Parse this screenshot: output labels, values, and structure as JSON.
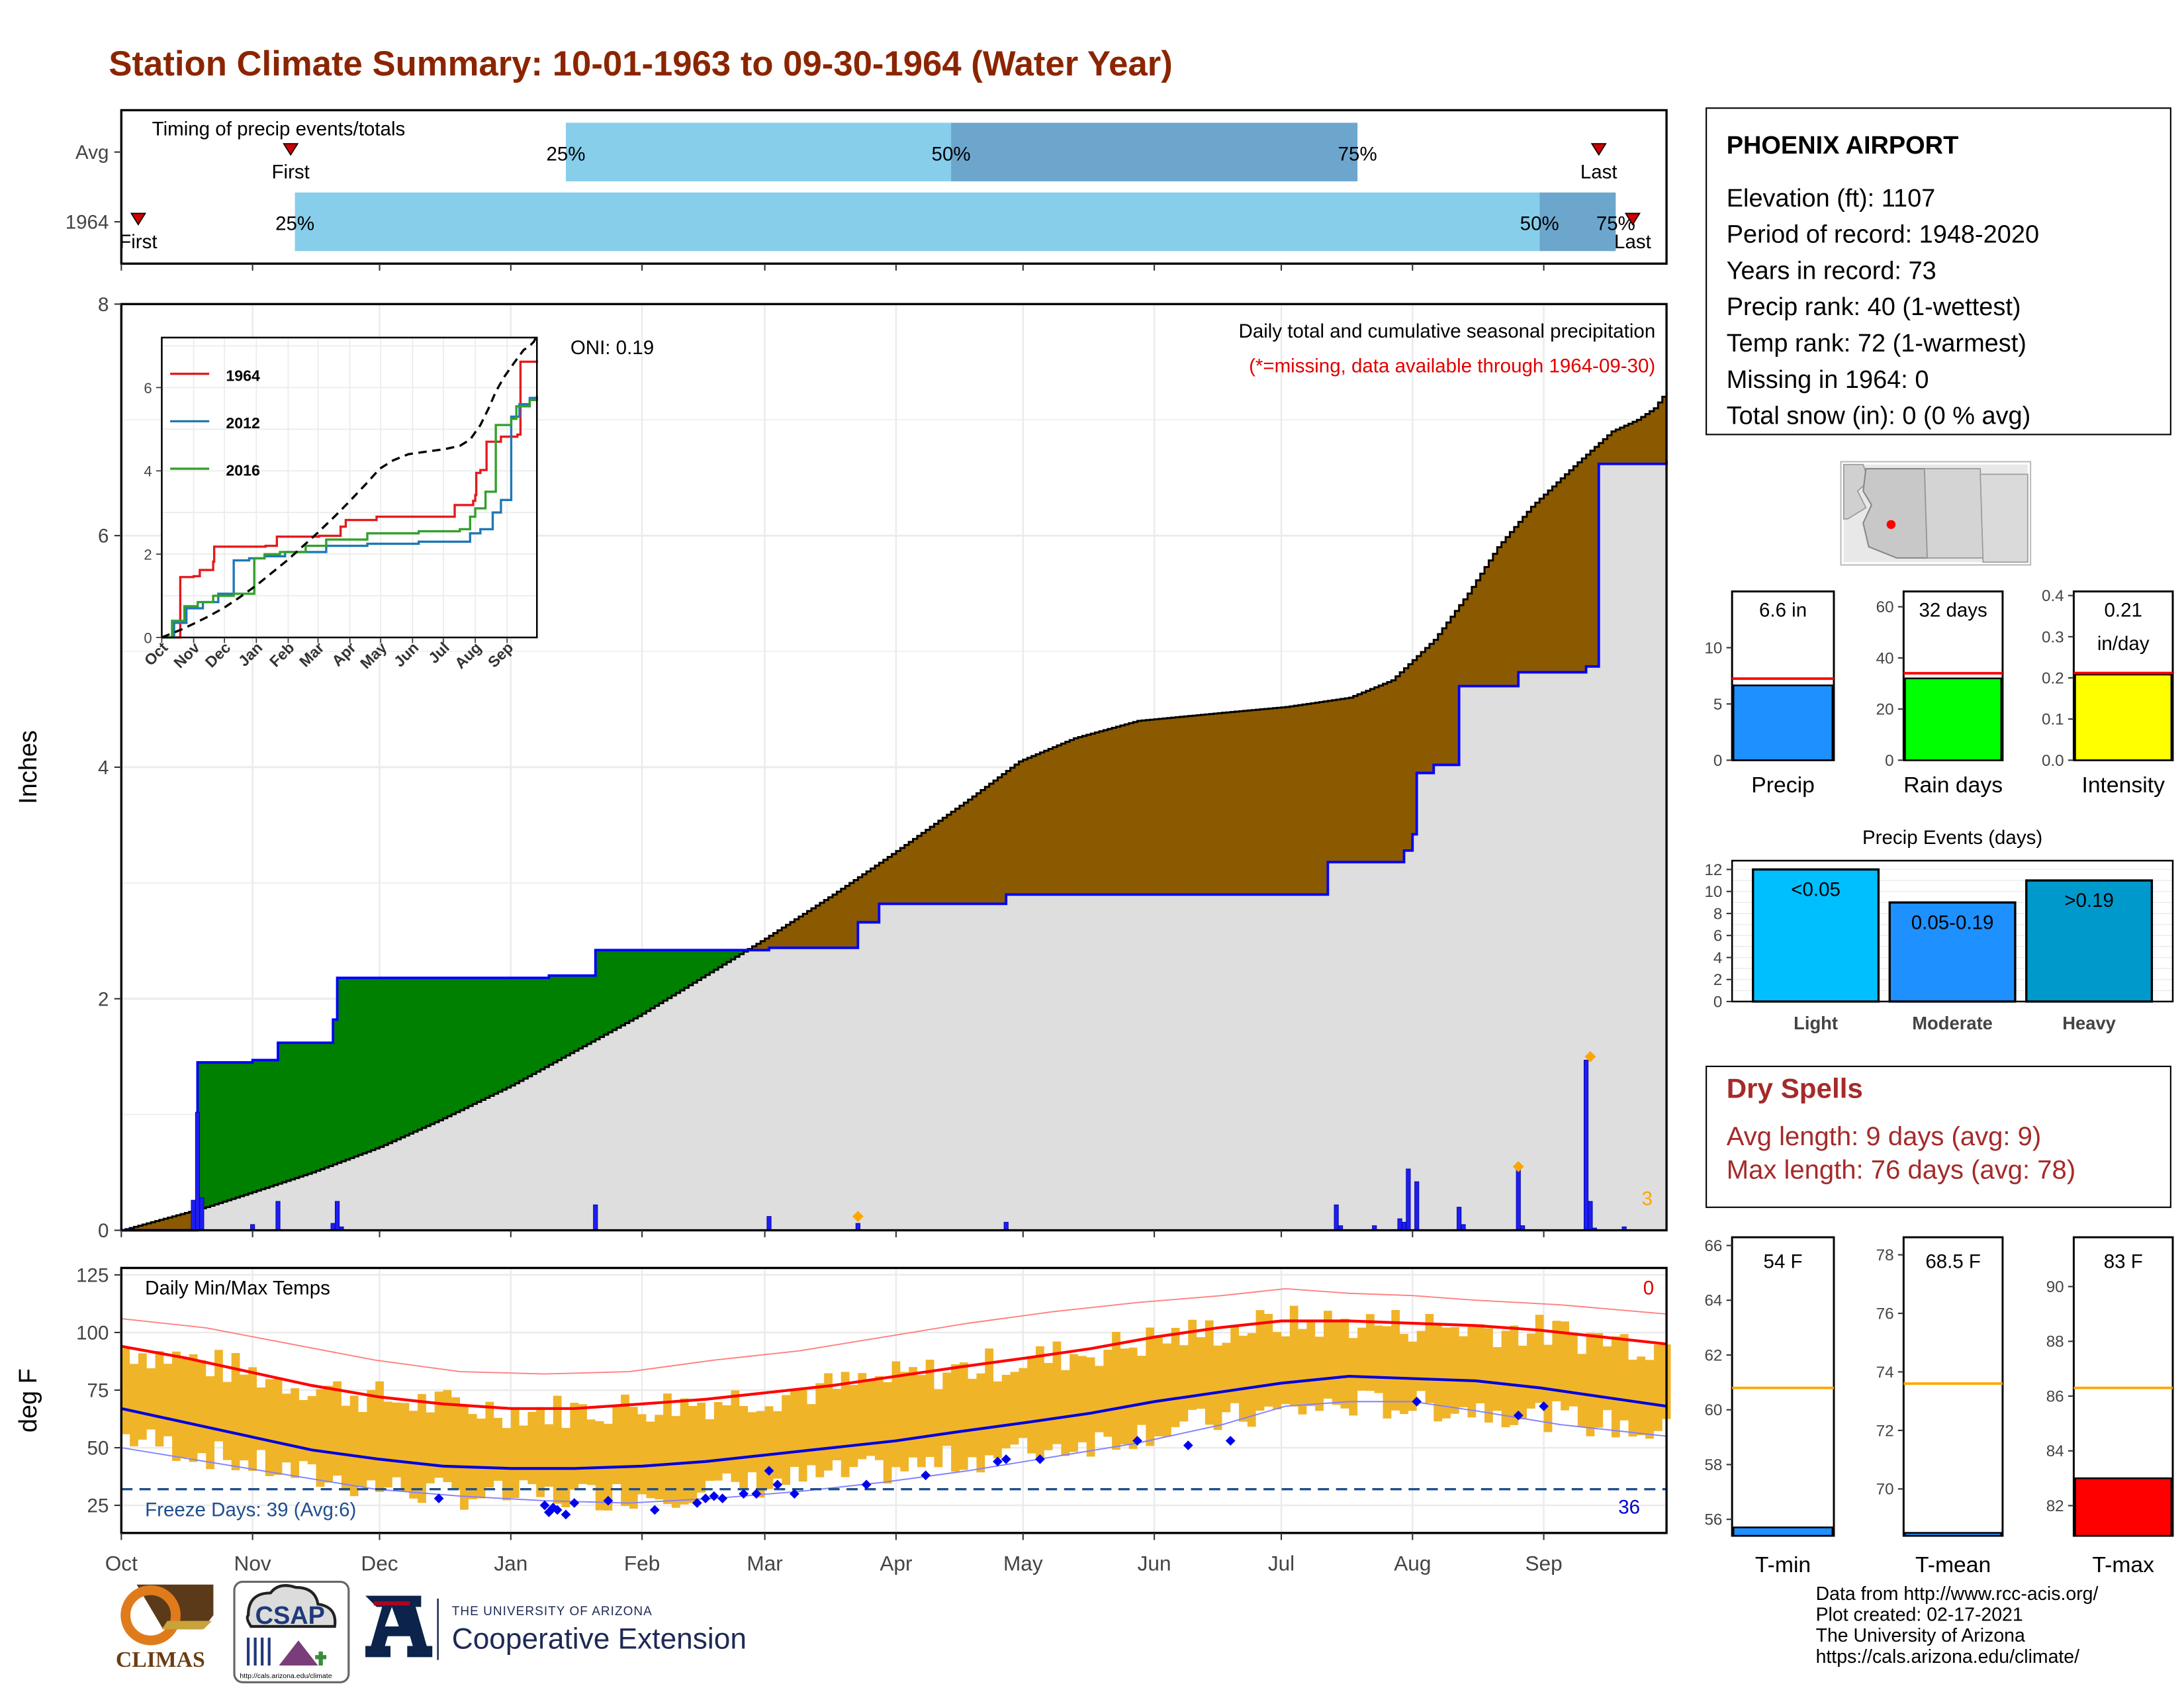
{
  "title": "Station Climate Summary: 10-01-1963 to 09-30-1964 (Water Year)",
  "timing": {
    "label": "Timing of precip events/totals",
    "rows": [
      {
        "row": "Avg",
        "first_label": "First",
        "last_label": "Last",
        "pct25": "25%",
        "pct50": "50%",
        "pct75": "75%",
        "first_day": 40,
        "day25": 105,
        "day50": 196,
        "day75": 292,
        "last_day": 349
      },
      {
        "row": "1964",
        "first_label": "First",
        "last_label": "Last",
        "pct25": "25%",
        "pct50": "50%",
        "pct75": "75%",
        "first_day": 4,
        "day25": 41,
        "day50": 335,
        "day75": 353,
        "last_day": 357
      }
    ]
  },
  "station": {
    "name": "PHOENIX AIRPORT",
    "elevation": "Elevation (ft): 1107",
    "period": "Period of record: 1948-2020",
    "years": "Years in record: 73",
    "precip_rank": "Precip rank: 40 (1-wettest)",
    "temp_rank": "Temp rank: 72 (1-warmest)",
    "missing": "Missing in 1964: 0",
    "snow": "Total snow (in): 0 (0 % avg)"
  },
  "chart_data": [
    {
      "type": "area",
      "name": "main-precip",
      "subtitle": "Daily total and cumulative seasonal precipitation",
      "missing_note": "(*=missing, data available through 1964-09-30)",
      "ylabel": "Inches",
      "ylim": [
        0,
        8
      ],
      "yticks": [
        "0",
        "2",
        "4",
        "6",
        "8"
      ],
      "oni": "ONI: 0.19",
      "corner_count": "3",
      "months": [
        "Oct",
        "Nov",
        "Dec",
        "Jan",
        "Feb",
        "Mar",
        "Apr",
        "May",
        "Jun",
        "Jul",
        "Aug",
        "Sep"
      ],
      "avg_cumulative": {
        "days": [
          0,
          20,
          31,
          45,
          61,
          75,
          92,
          108,
          122,
          140,
          152,
          168,
          182,
          200,
          212,
          225,
          240,
          260,
          275,
          290,
          300,
          310,
          318,
          325,
          333,
          343,
          352,
          358,
          362,
          365
        ],
        "values": [
          0,
          0.2,
          0.33,
          0.5,
          0.72,
          0.95,
          1.25,
          1.57,
          1.85,
          2.25,
          2.52,
          2.9,
          3.25,
          3.72,
          4.05,
          4.25,
          4.4,
          4.47,
          4.52,
          4.6,
          4.75,
          5.1,
          5.5,
          5.9,
          6.25,
          6.6,
          6.9,
          7.0,
          7.1,
          7.25
        ]
      },
      "year_cumulative": {
        "days": [
          0,
          17,
          18,
          31,
          37,
          50,
          51,
          101,
          112,
          153,
          174,
          179,
          209,
          284,
          285,
          303,
          305,
          306,
          310,
          316,
          330,
          346,
          349,
          365
        ],
        "values": [
          0,
          0,
          1.45,
          1.47,
          1.62,
          1.82,
          2.18,
          2.2,
          2.42,
          2.44,
          2.66,
          2.82,
          2.9,
          2.9,
          3.18,
          3.28,
          3.42,
          3.95,
          4.02,
          4.7,
          4.82,
          4.87,
          6.62,
          6.65
        ]
      },
      "daily_bars": {
        "days": [
          17,
          18,
          19,
          31,
          37,
          50,
          51,
          52,
          112,
          153,
          174,
          209,
          287,
          288,
          296,
          302,
          303,
          304,
          306,
          316,
          317,
          330,
          331,
          346,
          347,
          348,
          355
        ],
        "values": [
          0.26,
          1.02,
          0.28,
          0.05,
          0.25,
          0.06,
          0.25,
          0.03,
          0.22,
          0.12,
          0.06,
          0.07,
          0.22,
          0.04,
          0.04,
          0.1,
          0.07,
          0.53,
          0.42,
          0.2,
          0.05,
          0.53,
          0.04,
          1.47,
          0.25,
          0.02,
          0.03
        ]
      },
      "flag_markers": {
        "days": [
          174,
          330,
          347
        ],
        "values": [
          0.12,
          0.55,
          1.5
        ]
      }
    },
    {
      "type": "line",
      "name": "inset-cumulative",
      "ylim": [
        0,
        7.2
      ],
      "yticks": [
        "0",
        "2",
        "4",
        "6"
      ],
      "months": [
        "Oct",
        "Nov",
        "Dec",
        "Jan",
        "Feb",
        "Mar",
        "Apr",
        "May",
        "Jun",
        "Jul",
        "Aug",
        "Sep"
      ],
      "series": [
        {
          "name": "1964",
          "color": "#e31a1c",
          "days": [
            0,
            17,
            18,
            31,
            37,
            50,
            51,
            101,
            112,
            153,
            174,
            179,
            209,
            284,
            285,
            303,
            305,
            306,
            310,
            316,
            330,
            346,
            349,
            365
          ],
          "values": [
            0,
            0,
            1.45,
            1.47,
            1.62,
            1.82,
            2.18,
            2.2,
            2.42,
            2.44,
            2.66,
            2.82,
            2.9,
            2.9,
            3.18,
            3.28,
            3.42,
            3.95,
            4.02,
            4.7,
            4.82,
            4.87,
            6.62,
            6.65
          ]
        },
        {
          "name": "2012",
          "color": "#1f78b4",
          "days": [
            0,
            12,
            24,
            40,
            55,
            70,
            85,
            100,
            120,
            160,
            200,
            250,
            290,
            300,
            310,
            322,
            330,
            340,
            348,
            358,
            365
          ],
          "values": [
            0,
            0.35,
            0.7,
            0.85,
            1.05,
            1.85,
            1.9,
            1.95,
            2.05,
            2.2,
            2.25,
            2.3,
            2.3,
            2.5,
            2.6,
            3.0,
            3.3,
            5.3,
            5.6,
            5.75,
            5.8
          ]
        },
        {
          "name": "2016",
          "color": "#33a02c",
          "days": [
            0,
            10,
            22,
            35,
            50,
            70,
            90,
            100,
            115,
            140,
            160,
            200,
            250,
            290,
            300,
            305,
            315,
            325,
            340,
            345,
            358,
            365
          ],
          "values": [
            0,
            0.4,
            0.75,
            0.85,
            1.0,
            1.05,
            1.9,
            2.0,
            2.05,
            2.2,
            2.35,
            2.5,
            2.55,
            2.6,
            2.9,
            3.1,
            3.5,
            5.1,
            5.25,
            5.55,
            5.7,
            5.75
          ]
        }
      ],
      "avg_series": {
        "color": "#000000",
        "days": [
          0,
          20,
          31,
          45,
          61,
          75,
          92,
          108,
          122,
          140,
          152,
          168,
          182,
          200,
          212,
          225,
          240,
          260,
          275,
          290,
          300,
          310,
          318,
          325,
          333,
          343,
          352,
          358,
          362,
          365
        ],
        "values": [
          0,
          0.2,
          0.33,
          0.5,
          0.72,
          0.95,
          1.25,
          1.57,
          1.85,
          2.25,
          2.52,
          2.9,
          3.25,
          3.72,
          4.05,
          4.25,
          4.4,
          4.47,
          4.52,
          4.6,
          4.75,
          5.1,
          5.5,
          5.9,
          6.25,
          6.6,
          6.9,
          7.0,
          7.1,
          7.25
        ]
      }
    },
    {
      "type": "line",
      "name": "daily-temps",
      "label": "Daily Min/Max Temps",
      "ylabel": "deg F",
      "ylim": [
        13,
        128
      ],
      "yticks": [
        "25",
        "50",
        "75",
        "100",
        "125"
      ],
      "freeze_label": "Freeze Days: 39 (Avg:6)",
      "freeze_line": 32,
      "count_high": "0",
      "count_low": "36",
      "months": [
        "Oct",
        "Nov",
        "Dec",
        "Jan",
        "Feb",
        "Mar",
        "Apr",
        "May",
        "Jun",
        "Jul",
        "Aug",
        "Sep"
      ],
      "avg_max": {
        "days": [
          0,
          15,
          30,
          45,
          61,
          76,
          92,
          107,
          123,
          138,
          153,
          168,
          183,
          198,
          214,
          229,
          244,
          259,
          274,
          290,
          305,
          320,
          335,
          350,
          365
        ],
        "values": [
          94,
          89,
          83,
          77,
          72,
          69,
          67,
          67,
          69,
          71,
          74,
          77,
          81,
          85,
          89,
          93,
          98,
          102,
          105,
          105,
          104,
          103,
          101,
          98,
          95
        ]
      },
      "avg_min": {
        "days": [
          0,
          15,
          30,
          45,
          61,
          76,
          92,
          107,
          123,
          138,
          153,
          168,
          183,
          198,
          214,
          229,
          244,
          259,
          274,
          290,
          305,
          320,
          335,
          350,
          365
        ],
        "values": [
          67,
          61,
          55,
          49,
          45,
          42,
          41,
          41,
          42,
          44,
          47,
          50,
          53,
          57,
          61,
          65,
          70,
          74,
          78,
          81,
          80,
          79,
          76,
          72,
          68
        ]
      },
      "record_max": {
        "days": [
          0,
          20,
          40,
          60,
          80,
          100,
          120,
          140,
          160,
          180,
          200,
          220,
          240,
          260,
          275,
          290,
          305,
          320,
          340,
          365
        ],
        "values": [
          106,
          102,
          95,
          88,
          83,
          82,
          83,
          88,
          92,
          98,
          104,
          109,
          113,
          116,
          119,
          117,
          116,
          114,
          112,
          108
        ]
      },
      "record_min": {
        "days": [
          0,
          20,
          40,
          60,
          80,
          100,
          120,
          140,
          160,
          180,
          200,
          220,
          240,
          260,
          275,
          290,
          305,
          320,
          340,
          365
        ],
        "values": [
          50,
          44,
          38,
          32,
          29,
          27,
          26,
          28,
          31,
          35,
          40,
          46,
          52,
          60,
          68,
          70,
          70,
          66,
          60,
          55
        ]
      },
      "freeze_marker_days": [
        75,
        100,
        101,
        102,
        103,
        105,
        107,
        115,
        126,
        136,
        138,
        140,
        142,
        147,
        150,
        153,
        155,
        159,
        176,
        190,
        207,
        209,
        217,
        240,
        252,
        262,
        306,
        330,
        336
      ],
      "freeze_marker_values": [
        28,
        25,
        22,
        24,
        23,
        21,
        26,
        27,
        23,
        26,
        28,
        29,
        28,
        30,
        30,
        40,
        34,
        30,
        34,
        38,
        44,
        45,
        45,
        53,
        51,
        53,
        70,
        64,
        68
      ]
    },
    {
      "type": "bar",
      "name": "mini-precip",
      "xlabel": "Precip",
      "value_label": "6.6 in",
      "value": 6.65,
      "avg": 7.25,
      "ylim": [
        0,
        15
      ],
      "yticks": [
        "0",
        "5",
        "10"
      ],
      "color": "#1e90ff"
    },
    {
      "type": "bar",
      "name": "mini-raindays",
      "xlabel": "Rain days",
      "value_label": "32 days",
      "value": 32,
      "avg": 34,
      "ylim": [
        0,
        66
      ],
      "yticks": [
        "0",
        "20",
        "40",
        "60"
      ],
      "color": "#00ff00"
    },
    {
      "type": "bar",
      "name": "mini-intensity",
      "xlabel": "Intensity",
      "value_label_1": "0.21",
      "value_label_2": "in/day",
      "value": 0.208,
      "avg": 0.212,
      "ylim": [
        0,
        0.41
      ],
      "yticks": [
        "0.0",
        "0.1",
        "0.2",
        "0.3",
        "0.4"
      ],
      "color": "#ffff00"
    },
    {
      "type": "bar",
      "name": "precip-events",
      "title": "Precip Events (days)",
      "categories": [
        "Light",
        "Moderate",
        "Heavy"
      ],
      "bar_labels": [
        "<0.05",
        "0.05-0.19",
        ">0.19"
      ],
      "values": [
        12,
        9,
        11
      ],
      "colors": [
        "#00bfff",
        "#1e90ff",
        "#0099cc"
      ],
      "ylim": [
        0,
        12.8
      ],
      "yticks": [
        "0",
        "2",
        "4",
        "6",
        "8",
        "10",
        "12"
      ]
    },
    {
      "type": "bar",
      "name": "tmin",
      "xlabel": "T-min",
      "value_label": "54 F",
      "value": 54,
      "avg": 60.8,
      "ylim": [
        55.4,
        66.3
      ],
      "yticks": [
        "56",
        "58",
        "60",
        "62",
        "64",
        "66"
      ],
      "color": "#1e90ff"
    },
    {
      "type": "bar",
      "name": "tmean",
      "xlabel": "T-mean",
      "value_label": "68.5 F",
      "value": 68.5,
      "avg": 73.6,
      "ylim": [
        68.4,
        78.6
      ],
      "yticks": [
        "70",
        "72",
        "74",
        "76",
        "78"
      ],
      "color": "#1e90ff"
    },
    {
      "type": "bar",
      "name": "tmax",
      "xlabel": "T-max",
      "value_label": "83 F",
      "value": 83,
      "avg": 86.3,
      "ylim": [
        80.9,
        91.8
      ],
      "yticks": [
        "82",
        "84",
        "86",
        "88",
        "90"
      ],
      "color": "#ff0000"
    }
  ],
  "dry_spells": {
    "title": "Dry Spells",
    "avg_length": "Avg length: 9 days (avg: 9)",
    "max_length": "Max length: 76 days (avg: 78)"
  },
  "credits": {
    "line1": "Data from http://www.rcc-acis.org/",
    "line2": "Plot created: 02-17-2021",
    "line3": "The University of Arizona",
    "line4": "https://cals.arizona.edu/climate/"
  },
  "logos": {
    "climas": "CLIMAS",
    "csap": "CSAP",
    "csap_url": "http://cals.arizona.edu/climate",
    "ua_small": "THE UNIVERSITY OF ARIZONA",
    "ua_big": "Cooperative Extension"
  },
  "colors": {
    "title": "#8b2500",
    "surplus_fill": "#8b5a00",
    "deficit_fill": "#008000",
    "year_line": "#0000ff",
    "gray_area": "#dedede",
    "temp_bars": "#f0b429",
    "flag_orange": "#ffa500"
  }
}
